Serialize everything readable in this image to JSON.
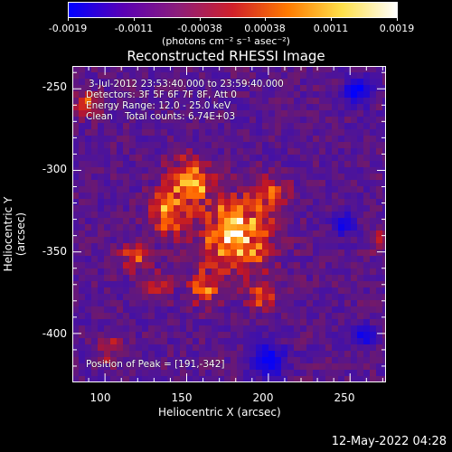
{
  "colorbar": {
    "tick_labels": [
      "-0.0019",
      "-0.0011",
      "-0.00038",
      "0.00038",
      "0.0011",
      "0.0019"
    ],
    "units": "(photons cm⁻² s⁻¹ asec⁻²)",
    "colors": [
      "#0000ff",
      "#5a00b4",
      "#8c1e7a",
      "#d0202a",
      "#ff7a00",
      "#ffe14a",
      "#ffffff"
    ]
  },
  "title": "Reconstructed RHESSI Image",
  "info": {
    "time_range": "3-Jul-2012 23:53:40.000 to 23:59:40.000",
    "detectors": "Detectors: 3F 5F 6F 7F 8F, Att 0",
    "energy": "Energy Range: 12.0 - 25.0 keV",
    "clean": "Clean    Total counts: 6.74E+03",
    "peak": "Position of Peak = [191,-342]"
  },
  "axes": {
    "xlabel": "Heliocentric X (arcsec)",
    "ylabel": "Heliocentric Y (arcsec)",
    "xticks": [
      "100",
      "150",
      "200",
      "250"
    ],
    "yticks": [
      "-250",
      "-300",
      "-350",
      "-400"
    ],
    "xlim": [
      80,
      272
    ],
    "ylim": [
      -430,
      -236
    ]
  },
  "timestamp": "12-May-2022 04:28"
}
